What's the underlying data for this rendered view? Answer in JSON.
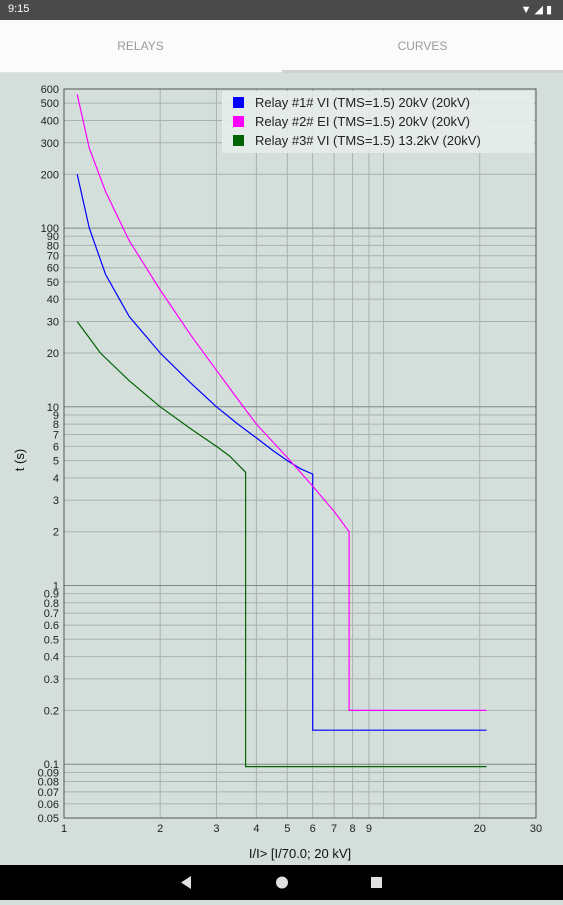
{
  "status_bar": {
    "time": "9:15",
    "icons": [
      "wifi-icon",
      "signal-icon",
      "battery-icon"
    ]
  },
  "tabs": [
    {
      "label": "RELAYS",
      "selected": false
    },
    {
      "label": "CURVES",
      "selected": true
    }
  ],
  "chart_data": {
    "type": "line",
    "xlabel": "I/I> [I/70.0; 20 kV]",
    "ylabel": "t (s)",
    "xscale": "log",
    "yscale": "log",
    "xlim": [
      1,
      30
    ],
    "ylim": [
      0.05,
      600
    ],
    "x_ticks": [
      1,
      2,
      3,
      4,
      5,
      6,
      7,
      8,
      9,
      20,
      30
    ],
    "x_grid": [
      1,
      2,
      3,
      4,
      5,
      6,
      7,
      8,
      9,
      10,
      20,
      30
    ],
    "y_ticks": [
      0.05,
      0.06,
      0.07,
      0.08,
      0.09,
      0.1,
      0.2,
      0.3,
      0.4,
      0.5,
      0.6,
      0.7,
      0.8,
      0.9,
      1,
      2,
      3,
      4,
      5,
      6,
      7,
      8,
      9,
      10,
      20,
      30,
      40,
      50,
      60,
      70,
      80,
      90,
      100,
      200,
      300,
      400,
      500,
      600
    ],
    "grid": true,
    "legend_position": "top-right",
    "series": [
      {
        "name": "Relay #1# VI (TMS=1.5) 20kV (20kV)",
        "color": "#0000ff",
        "points": [
          [
            1.1,
            200
          ],
          [
            1.2,
            100
          ],
          [
            1.35,
            55
          ],
          [
            1.6,
            32
          ],
          [
            2,
            20
          ],
          [
            2.5,
            13.5
          ],
          [
            3,
            10
          ],
          [
            3.5,
            8
          ],
          [
            4,
            6.7
          ],
          [
            4.5,
            5.7
          ],
          [
            5,
            5
          ],
          [
            5.5,
            4.5
          ],
          [
            6.0,
            4.2
          ],
          [
            6.0,
            0.155
          ],
          [
            21,
            0.155
          ]
        ]
      },
      {
        "name": "Relay #2# EI (TMS=1.5) 20kV (20kV)",
        "color": "#ff00ff",
        "points": [
          [
            1.1,
            560
          ],
          [
            1.2,
            280
          ],
          [
            1.35,
            160
          ],
          [
            1.6,
            85
          ],
          [
            2,
            45
          ],
          [
            2.5,
            25
          ],
          [
            3,
            16
          ],
          [
            3.5,
            11
          ],
          [
            4,
            8
          ],
          [
            5,
            5.2
          ],
          [
            6,
            3.6
          ],
          [
            7,
            2.6
          ],
          [
            7.8,
            2.0
          ],
          [
            7.8,
            0.2
          ],
          [
            21,
            0.2
          ]
        ]
      },
      {
        "name": "Relay #3# VI (TMS=1.5) 13.2kV (20kV)",
        "color": "#006400",
        "points": [
          [
            1.1,
            30
          ],
          [
            1.3,
            20
          ],
          [
            1.6,
            14
          ],
          [
            2,
            10
          ],
          [
            2.5,
            7.5
          ],
          [
            3,
            6
          ],
          [
            3.3,
            5.3
          ],
          [
            3.7,
            4.3
          ],
          [
            3.7,
            0.097
          ],
          [
            21,
            0.097
          ]
        ]
      }
    ]
  },
  "nav": {
    "icons": [
      "back-icon",
      "home-icon",
      "recent-apps-icon"
    ]
  }
}
